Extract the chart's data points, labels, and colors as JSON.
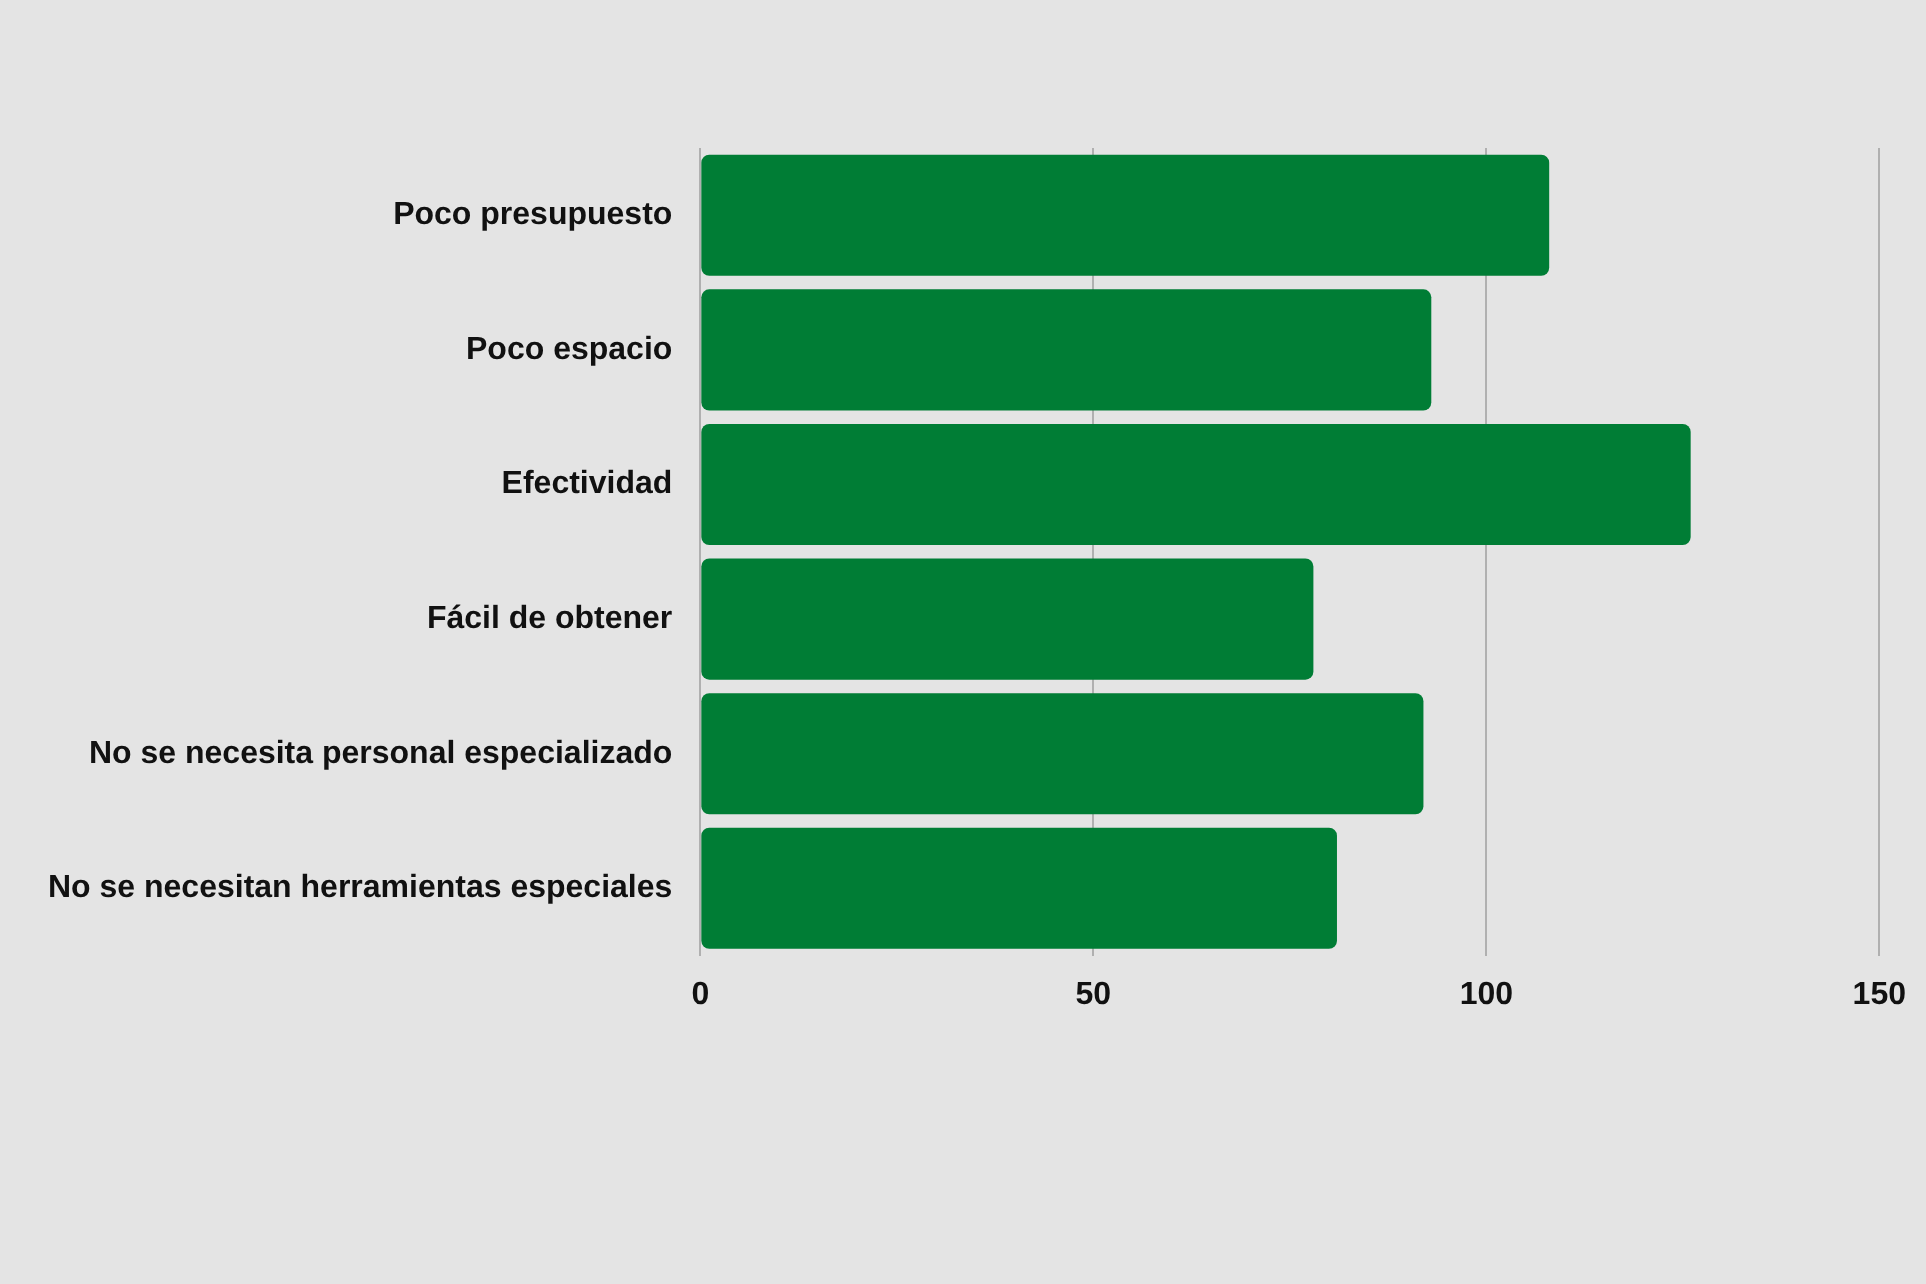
{
  "chart_data": {
    "type": "bar",
    "orientation": "horizontal",
    "categories": [
      "Poco presupuesto",
      "Poco espacio",
      "Efectividad",
      "Fácil de obtener",
      "No se necesita personal especializado",
      "No se necesitan herramientas especiales"
    ],
    "values": [
      108,
      93,
      126,
      78,
      92,
      81
    ],
    "color": "#007d35",
    "xlim": [
      0,
      150
    ],
    "xticks": [
      0,
      50,
      100,
      150
    ],
    "grid": "x"
  }
}
